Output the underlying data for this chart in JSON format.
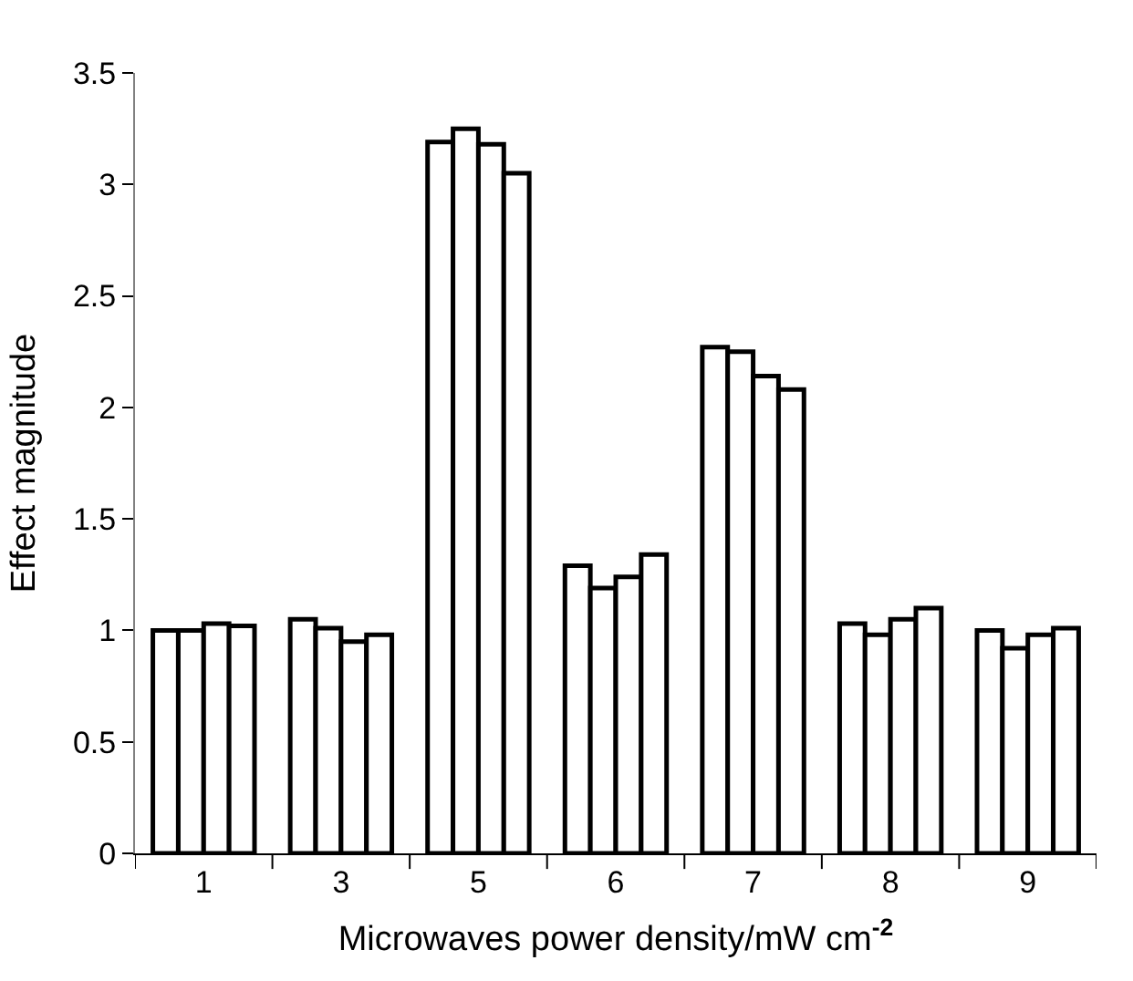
{
  "chart_data": {
    "type": "bar",
    "xlabel": "Microwaves power density/mW cm$^{-2}$",
    "ylabel": "Effect magnitude",
    "categories": [
      "1",
      "3",
      "5",
      "6",
      "7",
      "8",
      "9"
    ],
    "series": [
      {
        "color": "#ffffff",
        "values": [
          1.0,
          1.05,
          3.19,
          1.29,
          2.27,
          1.03,
          1.0
        ]
      },
      {
        "color": "#ffffff",
        "values": [
          1.0,
          1.01,
          3.25,
          1.19,
          2.25,
          0.98,
          0.92
        ]
      },
      {
        "color": "#ffffff",
        "values": [
          1.03,
          0.95,
          3.18,
          1.24,
          2.14,
          1.05,
          0.98
        ]
      },
      {
        "color": "#ffffff",
        "values": [
          1.02,
          0.98,
          3.05,
          1.34,
          2.08,
          1.1,
          1.01
        ]
      }
    ],
    "ylim": [
      0,
      3.5
    ],
    "yticks": [
      0,
      0.5,
      1,
      1.5,
      2,
      2.5,
      3,
      3.5
    ]
  }
}
